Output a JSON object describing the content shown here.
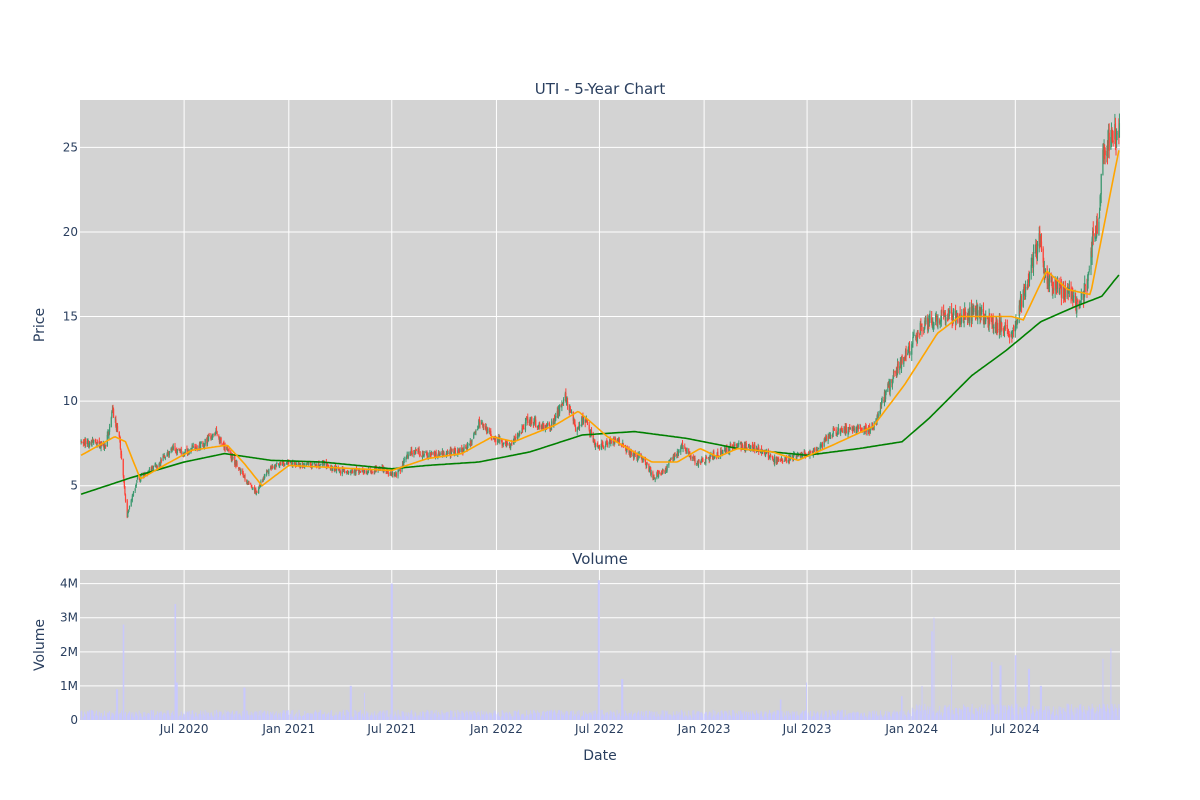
{
  "chart_data": [
    {
      "type": "candlestick",
      "title": "UTI - 5-Year Chart",
      "ylabel": "Price",
      "xlabel": "",
      "ylim": [
        1.2,
        27.8
      ],
      "x_range": [
        "2020-01-02",
        "2024-12-31"
      ],
      "yticks": [
        5,
        10,
        15,
        20,
        25
      ],
      "grid": true,
      "colors": {
        "up": "#3d9970",
        "down": "#ff4136",
        "plot_bg": "#d3d3d3",
        "grid": "#ffffff",
        "ma_short": "#ffa500",
        "ma_long": "#008000"
      },
      "price_anchors": [
        [
          "2020-01-02",
          7.6
        ],
        [
          "2020-02-15",
          7.4
        ],
        [
          "2020-02-26",
          9.6
        ],
        [
          "2020-03-10",
          7.6
        ],
        [
          "2020-03-23",
          3.2
        ],
        [
          "2020-04-10",
          5.4
        ],
        [
          "2020-05-15",
          6.2
        ],
        [
          "2020-06-10",
          7.2
        ],
        [
          "2020-07-01",
          7.0
        ],
        [
          "2020-08-01",
          7.4
        ],
        [
          "2020-08-25",
          8.1
        ],
        [
          "2020-09-20",
          6.8
        ],
        [
          "2020-10-20",
          5.2
        ],
        [
          "2020-11-05",
          4.6
        ],
        [
          "2020-11-20",
          5.7
        ],
        [
          "2020-12-20",
          6.4
        ],
        [
          "2021-02-01",
          6.2
        ],
        [
          "2021-03-01",
          6.3
        ],
        [
          "2021-04-01",
          5.9
        ],
        [
          "2021-05-15",
          5.8
        ],
        [
          "2021-06-15",
          6.0
        ],
        [
          "2021-07-10",
          5.6
        ],
        [
          "2021-08-01",
          7.0
        ],
        [
          "2021-09-15",
          6.8
        ],
        [
          "2021-10-15",
          7.0
        ],
        [
          "2021-11-10",
          7.2
        ],
        [
          "2021-12-01",
          8.7
        ],
        [
          "2021-12-25",
          7.9
        ],
        [
          "2022-01-25",
          7.3
        ],
        [
          "2022-02-25",
          8.9
        ],
        [
          "2022-03-25",
          8.5
        ],
        [
          "2022-04-10",
          8.6
        ],
        [
          "2022-05-01",
          10.3
        ],
        [
          "2022-05-20",
          8.4
        ],
        [
          "2022-06-05",
          9.0
        ],
        [
          "2022-06-25",
          7.2
        ],
        [
          "2022-08-01",
          7.8
        ],
        [
          "2022-08-25",
          6.9
        ],
        [
          "2022-09-15",
          6.6
        ],
        [
          "2022-10-05",
          5.5
        ],
        [
          "2022-10-25",
          6.0
        ],
        [
          "2022-11-25",
          7.4
        ],
        [
          "2022-12-20",
          6.3
        ],
        [
          "2023-01-25",
          6.9
        ],
        [
          "2023-02-25",
          7.4
        ],
        [
          "2023-04-15",
          7.1
        ],
        [
          "2023-05-10",
          6.4
        ],
        [
          "2023-06-15",
          6.8
        ],
        [
          "2023-07-15",
          7.0
        ],
        [
          "2023-08-15",
          8.2
        ],
        [
          "2023-10-01",
          8.4
        ],
        [
          "2023-10-25",
          8.3
        ],
        [
          "2023-11-15",
          10.4
        ],
        [
          "2023-11-30",
          11.5
        ],
        [
          "2023-12-20",
          12.7
        ],
        [
          "2024-01-20",
          14.5
        ],
        [
          "2024-02-25",
          15.0
        ],
        [
          "2024-03-25",
          14.9
        ],
        [
          "2024-04-25",
          15.3
        ],
        [
          "2024-05-25",
          14.6
        ],
        [
          "2024-06-25",
          14.0
        ],
        [
          "2024-07-15",
          16.3
        ],
        [
          "2024-07-30",
          18.0
        ],
        [
          "2024-08-12",
          19.4
        ],
        [
          "2024-08-25",
          17.0
        ],
        [
          "2024-10-01",
          16.4
        ],
        [
          "2024-10-20",
          15.5
        ],
        [
          "2024-11-05",
          17.0
        ],
        [
          "2024-11-15",
          19.8
        ],
        [
          "2024-11-25",
          20.3
        ],
        [
          "2024-12-01",
          25.0
        ],
        [
          "2024-12-31",
          26.0
        ]
      ],
      "ma_short_anchors": [
        [
          "2020-01-02",
          6.8
        ],
        [
          "2020-03-01",
          7.9
        ],
        [
          "2020-03-20",
          7.6
        ],
        [
          "2020-04-15",
          5.4
        ],
        [
          "2020-06-01",
          6.3
        ],
        [
          "2020-07-15",
          7.1
        ],
        [
          "2020-09-15",
          7.4
        ],
        [
          "2020-10-15",
          6.3
        ],
        [
          "2020-11-15",
          5.0
        ],
        [
          "2021-01-01",
          6.2
        ],
        [
          "2021-07-01",
          5.9
        ],
        [
          "2021-09-01",
          6.6
        ],
        [
          "2021-11-01",
          6.9
        ],
        [
          "2021-12-25",
          7.9
        ],
        [
          "2022-02-01",
          7.6
        ],
        [
          "2022-04-15",
          8.6
        ],
        [
          "2022-05-25",
          9.4
        ],
        [
          "2022-07-15",
          7.9
        ],
        [
          "2022-10-01",
          6.4
        ],
        [
          "2022-11-15",
          6.4
        ],
        [
          "2022-12-25",
          7.2
        ],
        [
          "2023-01-25",
          6.7
        ],
        [
          "2023-03-01",
          7.2
        ],
        [
          "2023-05-01",
          7.0
        ],
        [
          "2023-06-15",
          6.5
        ],
        [
          "2023-08-15",
          7.4
        ],
        [
          "2023-10-25",
          8.5
        ],
        [
          "2023-12-20",
          11.0
        ],
        [
          "2024-02-15",
          14.0
        ],
        [
          "2024-03-25",
          15.0
        ],
        [
          "2024-06-25",
          15.0
        ],
        [
          "2024-07-15",
          14.8
        ],
        [
          "2024-08-25",
          17.7
        ],
        [
          "2024-10-01",
          16.6
        ],
        [
          "2024-11-10",
          16.3
        ],
        [
          "2024-12-31",
          25.0
        ]
      ],
      "ma_long_anchors": [
        [
          "2020-01-02",
          4.5
        ],
        [
          "2020-04-01",
          5.5
        ],
        [
          "2020-07-01",
          6.4
        ],
        [
          "2020-09-10",
          6.9
        ],
        [
          "2020-12-01",
          6.5
        ],
        [
          "2021-03-01",
          6.4
        ],
        [
          "2021-07-01",
          6.0
        ],
        [
          "2021-09-01",
          6.2
        ],
        [
          "2021-12-01",
          6.4
        ],
        [
          "2022-03-01",
          7.0
        ],
        [
          "2022-06-01",
          8.0
        ],
        [
          "2022-09-01",
          8.2
        ],
        [
          "2022-12-01",
          7.8
        ],
        [
          "2023-03-01",
          7.2
        ],
        [
          "2023-07-01",
          6.8
        ],
        [
          "2023-10-01",
          7.2
        ],
        [
          "2023-12-15",
          7.6
        ],
        [
          "2024-02-01",
          9.0
        ],
        [
          "2024-04-15",
          11.5
        ],
        [
          "2024-06-15",
          13.0
        ],
        [
          "2024-08-15",
          14.7
        ],
        [
          "2024-10-15",
          15.6
        ],
        [
          "2024-11-30",
          16.2
        ],
        [
          "2024-12-31",
          17.5
        ]
      ]
    },
    {
      "type": "bar",
      "title": "Volume",
      "xlabel": "Date",
      "ylabel": "Volume",
      "ylim": [
        0,
        4400000
      ],
      "yticks": [
        0,
        1000000,
        2000000,
        3000000,
        4000000
      ],
      "ytick_labels": [
        "0",
        "1M",
        "2M",
        "3M",
        "4M"
      ],
      "xticks": [
        "2020-07-01",
        "2021-01-01",
        "2021-07-01",
        "2022-01-01",
        "2022-07-01",
        "2023-01-01",
        "2023-07-01",
        "2024-01-01",
        "2024-07-01"
      ],
      "xtick_labels": [
        "Jul 2020",
        "Jan 2021",
        "Jul 2021",
        "Jan 2022",
        "Jul 2022",
        "Jan 2023",
        "Jul 2023",
        "Jan 2024",
        "Jul 2024"
      ],
      "bar_color": "#c8c8ff",
      "baseline_volume": 250000,
      "spikes": [
        [
          "2020-03-16",
          2800000
        ],
        [
          "2020-03-05",
          900000
        ],
        [
          "2020-06-15",
          3400000
        ],
        [
          "2020-06-18",
          1100000
        ],
        [
          "2020-10-15",
          950000
        ],
        [
          "2021-04-20",
          1000000
        ],
        [
          "2021-05-15",
          800000
        ],
        [
          "2021-07-01",
          4000000
        ],
        [
          "2022-06-30",
          4100000
        ],
        [
          "2022-08-10",
          1200000
        ],
        [
          "2023-05-15",
          600000
        ],
        [
          "2023-07-01",
          1100000
        ],
        [
          "2023-12-15",
          700000
        ],
        [
          "2024-01-20",
          1000000
        ],
        [
          "2024-02-05",
          2600000
        ],
        [
          "2024-02-10",
          3000000
        ],
        [
          "2024-03-10",
          1900000
        ],
        [
          "2024-05-20",
          1700000
        ],
        [
          "2024-06-05",
          1600000
        ],
        [
          "2024-07-01",
          1900000
        ],
        [
          "2024-07-25",
          1500000
        ],
        [
          "2024-08-15",
          1000000
        ],
        [
          "2024-12-01",
          1800000
        ],
        [
          "2024-12-15",
          2100000
        ]
      ]
    }
  ]
}
